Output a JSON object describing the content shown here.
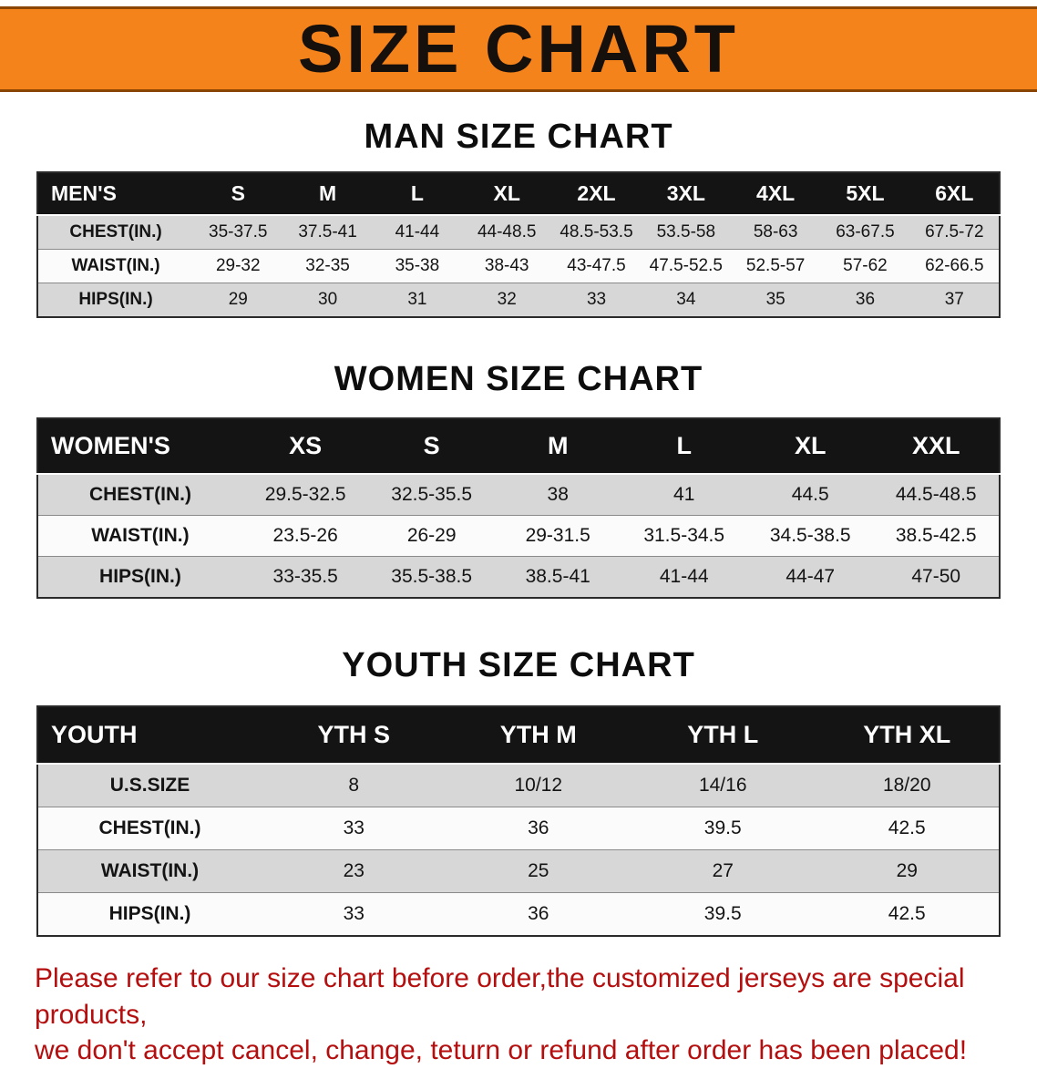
{
  "banner": {
    "title": "SIZE CHART",
    "bg_color": "#f5831c"
  },
  "sections": [
    {
      "heading": "MAN SIZE CHART",
      "table": {
        "header": [
          "MEN'S",
          "S",
          "M",
          "L",
          "XL",
          "2XL",
          "3XL",
          "4XL",
          "5XL",
          "6XL"
        ],
        "rows": [
          {
            "label": "CHEST(IN.)",
            "values": [
              "35-37.5",
              "37.5-41",
              "41-44",
              "44-48.5",
              "48.5-53.5",
              "53.5-58",
              "58-63",
              "63-67.5",
              "67.5-72"
            ]
          },
          {
            "label": "WAIST(IN.)",
            "values": [
              "29-32",
              "32-35",
              "35-38",
              "38-43",
              "43-47.5",
              "47.5-52.5",
              "52.5-57",
              "57-62",
              "62-66.5"
            ]
          },
          {
            "label": "HIPS(IN.)",
            "values": [
              "29",
              "30",
              "31",
              "32",
              "33",
              "34",
              "35",
              "36",
              "37"
            ]
          }
        ]
      }
    },
    {
      "heading": "WOMEN SIZE CHART",
      "table": {
        "header": [
          "WOMEN'S",
          "XS",
          "S",
          "M",
          "L",
          "XL",
          "XXL"
        ],
        "rows": [
          {
            "label": "CHEST(IN.)",
            "values": [
              "29.5-32.5",
              "32.5-35.5",
              "38",
              "41",
              "44.5",
              "44.5-48.5"
            ]
          },
          {
            "label": "WAIST(IN.)",
            "values": [
              "23.5-26",
              "26-29",
              "29-31.5",
              "31.5-34.5",
              "34.5-38.5",
              "38.5-42.5"
            ]
          },
          {
            "label": "HIPS(IN.)",
            "values": [
              "33-35.5",
              "35.5-38.5",
              "38.5-41",
              "41-44",
              "44-47",
              "47-50"
            ]
          }
        ]
      }
    },
    {
      "heading": "YOUTH SIZE CHART",
      "table": {
        "header": [
          "YOUTH",
          "YTH S",
          "YTH M",
          "YTH L",
          "YTH XL"
        ],
        "rows": [
          {
            "label": "U.S.SIZE",
            "values": [
              "8",
              "10/12",
              "14/16",
              "18/20"
            ]
          },
          {
            "label": "CHEST(IN.)",
            "values": [
              "33",
              "36",
              "39.5",
              "42.5"
            ]
          },
          {
            "label": "WAIST(IN.)",
            "values": [
              "23",
              "25",
              "27",
              "29"
            ]
          },
          {
            "label": "HIPS(IN.)",
            "values": [
              "33",
              "36",
              "39.5",
              "42.5"
            ]
          }
        ]
      }
    }
  ],
  "footer": {
    "line1": "Please refer to our size chart before order,the customized jerseys are special products,",
    "line2": "we don't accept cancel, change, teturn or refund after order has been placed!",
    "text_color": "#b40e0e"
  }
}
